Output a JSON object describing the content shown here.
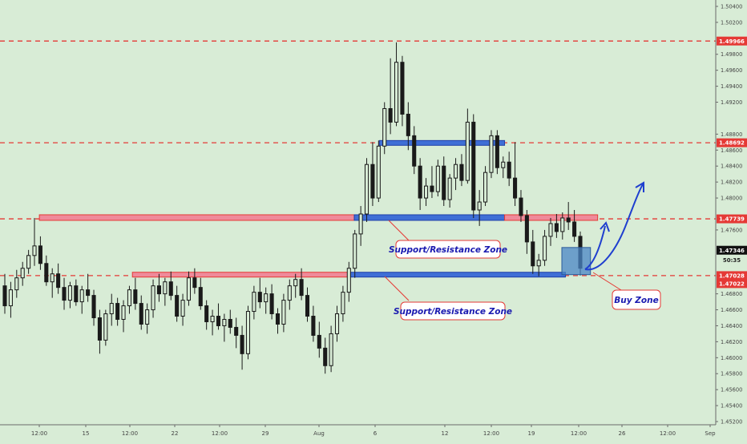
{
  "colors": {
    "background": "#d8ecd6",
    "candle": "#1a1a1a",
    "dashed_level": "#e53935",
    "resistance_zone_fill": "#ef8a9a",
    "resistance_zone_stroke": "#e53935",
    "support_zone_fill": "#3f6fd6",
    "support_zone_stroke": "#1f3fa8",
    "label_border": "#e53935",
    "label_text": "#1a1ab0",
    "arrow": "#1f3fcf",
    "buy_box": "#4a86c5"
  },
  "chart_data": {
    "type": "candlestick",
    "title": "",
    "xlabel": "",
    "ylabel": "",
    "ylim": [
      1.4516,
      1.5048
    ],
    "grid": false,
    "x_ticks": [
      "12:00",
      "15",
      "12:00",
      "22",
      "12:00",
      "29",
      "Aug",
      "6",
      "12",
      "12:00",
      "19",
      "12:00",
      "26",
      "12:00",
      "Sep"
    ],
    "y_ticks": [
      "1.50400",
      "1.50200",
      "1.49800",
      "1.49600",
      "1.49400",
      "1.49200",
      "1.48800",
      "1.48600",
      "1.48400",
      "1.48200",
      "1.48000",
      "1.47600",
      "1.46800",
      "1.46600",
      "1.46400",
      "1.46200",
      "1.46000",
      "1.45800",
      "1.45600",
      "1.45400",
      "1.45200"
    ],
    "price_badges": [
      {
        "label": "1.49966",
        "style": "level"
      },
      {
        "label": "1.48692",
        "style": "level"
      },
      {
        "label": "1.47739",
        "style": "level"
      },
      {
        "label": "1.47346",
        "style": "last"
      },
      {
        "label": "50:35",
        "style": "timer"
      },
      {
        "label": "1.47028",
        "style": "level"
      },
      {
        "label": "1.47022",
        "style": "level"
      }
    ],
    "horizontal_levels": [
      1.49966,
      1.48692,
      1.47739,
      1.47028
    ],
    "zones": [
      {
        "kind": "resistance",
        "top": 1.4779,
        "bottom": 1.4772,
        "x_start": 0.055,
        "x_end": 0.495
      },
      {
        "kind": "support",
        "top": 1.4779,
        "bottom": 1.4772,
        "x_start": 0.495,
        "x_end": 0.705
      },
      {
        "kind": "resistance",
        "top": 1.4779,
        "bottom": 1.4772,
        "x_start": 0.705,
        "x_end": 0.835
      },
      {
        "kind": "resistance",
        "top": 1.4707,
        "bottom": 1.4701,
        "x_start": 0.185,
        "x_end": 0.488
      },
      {
        "kind": "support",
        "top": 1.4707,
        "bottom": 1.4701,
        "x_start": 0.488,
        "x_end": 0.79
      },
      {
        "kind": "support",
        "top": 1.4872,
        "bottom": 1.4866,
        "x_start": 0.53,
        "x_end": 0.705
      }
    ],
    "buy_zone_box": {
      "top": 1.4738,
      "bottom": 1.4704,
      "x_start": 0.785,
      "x_end": 0.825
    },
    "annotations": [
      "Support/Resistance Zone",
      "Support/Resistance Zone",
      "Buy Zone"
    ],
    "series": [
      {
        "ohlc": [
          [
            1.469,
            1.4705,
            1.4655,
            1.4665
          ],
          [
            1.4665,
            1.4695,
            1.465,
            1.4685
          ],
          [
            1.4685,
            1.471,
            1.4675,
            1.47
          ],
          [
            1.47,
            1.472,
            1.469,
            1.4712
          ],
          [
            1.4712,
            1.4735,
            1.4705,
            1.4728
          ],
          [
            1.4728,
            1.4775,
            1.4715,
            1.474
          ],
          [
            1.474,
            1.4752,
            1.471,
            1.4718
          ],
          [
            1.4718,
            1.4728,
            1.469,
            1.4695
          ],
          [
            1.4695,
            1.4712,
            1.4675,
            1.4705
          ],
          [
            1.4705,
            1.4718,
            1.468,
            1.4688
          ],
          [
            1.4688,
            1.47,
            1.466,
            1.4672
          ],
          [
            1.4672,
            1.4695,
            1.4662,
            1.469
          ],
          [
            1.469,
            1.4698,
            1.4665,
            1.467
          ],
          [
            1.467,
            1.469,
            1.4655,
            1.4685
          ],
          [
            1.4685,
            1.4705,
            1.467,
            1.4678
          ],
          [
            1.4678,
            1.4685,
            1.464,
            1.465
          ],
          [
            1.465,
            1.466,
            1.4605,
            1.4622
          ],
          [
            1.4622,
            1.466,
            1.4615,
            1.4655
          ],
          [
            1.4655,
            1.468,
            1.464,
            1.4668
          ],
          [
            1.4668,
            1.4675,
            1.464,
            1.4648
          ],
          [
            1.4648,
            1.4672,
            1.4632,
            1.4665
          ],
          [
            1.4665,
            1.469,
            1.4655,
            1.4685
          ],
          [
            1.4685,
            1.47,
            1.466,
            1.4668
          ],
          [
            1.4668,
            1.4678,
            1.4635,
            1.4642
          ],
          [
            1.4642,
            1.4668,
            1.463,
            1.466
          ],
          [
            1.466,
            1.4698,
            1.465,
            1.469
          ],
          [
            1.469,
            1.4705,
            1.467,
            1.468
          ],
          [
            1.468,
            1.47,
            1.4665,
            1.4695
          ],
          [
            1.4695,
            1.4708,
            1.4672,
            1.4678
          ],
          [
            1.4678,
            1.469,
            1.4645,
            1.4652
          ],
          [
            1.4652,
            1.468,
            1.464,
            1.4672
          ],
          [
            1.4672,
            1.4708,
            1.4665,
            1.47
          ],
          [
            1.47,
            1.4712,
            1.468,
            1.4688
          ],
          [
            1.4688,
            1.47,
            1.466,
            1.4665
          ],
          [
            1.4665,
            1.4672,
            1.4635,
            1.4645
          ],
          [
            1.4645,
            1.466,
            1.4628,
            1.4652
          ],
          [
            1.4652,
            1.4668,
            1.4635,
            1.464
          ],
          [
            1.464,
            1.4655,
            1.462,
            1.4648
          ],
          [
            1.4648,
            1.466,
            1.463,
            1.4638
          ],
          [
            1.4638,
            1.465,
            1.4612,
            1.4628
          ],
          [
            1.4628,
            1.464,
            1.4585,
            1.4605
          ],
          [
            1.4605,
            1.4665,
            1.4598,
            1.4658
          ],
          [
            1.4658,
            1.469,
            1.4648,
            1.4682
          ],
          [
            1.4682,
            1.47,
            1.4662,
            1.467
          ],
          [
            1.467,
            1.4688,
            1.4655,
            1.468
          ],
          [
            1.468,
            1.4692,
            1.4648,
            1.4655
          ],
          [
            1.4655,
            1.4662,
            1.463,
            1.4642
          ],
          [
            1.4642,
            1.468,
            1.4632,
            1.4672
          ],
          [
            1.4672,
            1.4698,
            1.466,
            1.469
          ],
          [
            1.469,
            1.4705,
            1.4675,
            1.4698
          ],
          [
            1.4698,
            1.4712,
            1.4672,
            1.4678
          ],
          [
            1.4678,
            1.4688,
            1.4645,
            1.4652
          ],
          [
            1.4652,
            1.4665,
            1.462,
            1.4628
          ],
          [
            1.4628,
            1.4645,
            1.46,
            1.4612
          ],
          [
            1.4612,
            1.4625,
            1.458,
            1.459
          ],
          [
            1.459,
            1.464,
            1.4582,
            1.463
          ],
          [
            1.463,
            1.4665,
            1.462,
            1.4655
          ],
          [
            1.4655,
            1.469,
            1.4645,
            1.4682
          ],
          [
            1.4682,
            1.472,
            1.467,
            1.4712
          ],
          [
            1.4712,
            1.476,
            1.47,
            1.4755
          ],
          [
            1.4755,
            1.479,
            1.474,
            1.478
          ],
          [
            1.478,
            1.485,
            1.477,
            1.4842
          ],
          [
            1.4842,
            1.487,
            1.479,
            1.48
          ],
          [
            1.48,
            1.4872,
            1.4795,
            1.4865
          ],
          [
            1.4865,
            1.492,
            1.4855,
            1.4912
          ],
          [
            1.4912,
            1.4975,
            1.488,
            1.4895
          ],
          [
            1.4895,
            1.4995,
            1.489,
            1.497
          ],
          [
            1.497,
            1.4978,
            1.489,
            1.4905
          ],
          [
            1.4905,
            1.492,
            1.486,
            1.4878
          ],
          [
            1.4878,
            1.489,
            1.483,
            1.484
          ],
          [
            1.484,
            1.485,
            1.4785,
            1.48
          ],
          [
            1.48,
            1.4825,
            1.479,
            1.4815
          ],
          [
            1.4815,
            1.484,
            1.48,
            1.4808
          ],
          [
            1.4808,
            1.4848,
            1.4802,
            1.484
          ],
          [
            1.484,
            1.4852,
            1.479,
            1.4798
          ],
          [
            1.4798,
            1.483,
            1.4788,
            1.4825
          ],
          [
            1.4825,
            1.485,
            1.481,
            1.4842
          ],
          [
            1.4842,
            1.4855,
            1.4815,
            1.4822
          ],
          [
            1.4822,
            1.4912,
            1.4818,
            1.4895
          ],
          [
            1.4895,
            1.4905,
            1.4775,
            1.4785
          ],
          [
            1.4785,
            1.481,
            1.4765,
            1.4795
          ],
          [
            1.4795,
            1.484,
            1.479,
            1.4832
          ],
          [
            1.4832,
            1.4885,
            1.4825,
            1.4878
          ],
          [
            1.4878,
            1.4885,
            1.483,
            1.4838
          ],
          [
            1.4838,
            1.4852,
            1.4825,
            1.4845
          ],
          [
            1.4845,
            1.4858,
            1.4815,
            1.4825
          ],
          [
            1.4825,
            1.487,
            1.479,
            1.48
          ],
          [
            1.48,
            1.481,
            1.477,
            1.4778
          ],
          [
            1.4778,
            1.4785,
            1.473,
            1.4745
          ],
          [
            1.4745,
            1.476,
            1.4705,
            1.4715
          ],
          [
            1.4715,
            1.473,
            1.4702,
            1.4722
          ],
          [
            1.4722,
            1.476,
            1.4715,
            1.4752
          ],
          [
            1.4752,
            1.4775,
            1.474,
            1.4768
          ],
          [
            1.4768,
            1.478,
            1.475,
            1.4758
          ],
          [
            1.4758,
            1.4782,
            1.4748,
            1.4775
          ],
          [
            1.4775,
            1.4795,
            1.476,
            1.477
          ],
          [
            1.477,
            1.4785,
            1.4745,
            1.4752
          ],
          [
            1.4752,
            1.4758,
            1.4703,
            1.4712
          ]
        ]
      }
    ]
  }
}
